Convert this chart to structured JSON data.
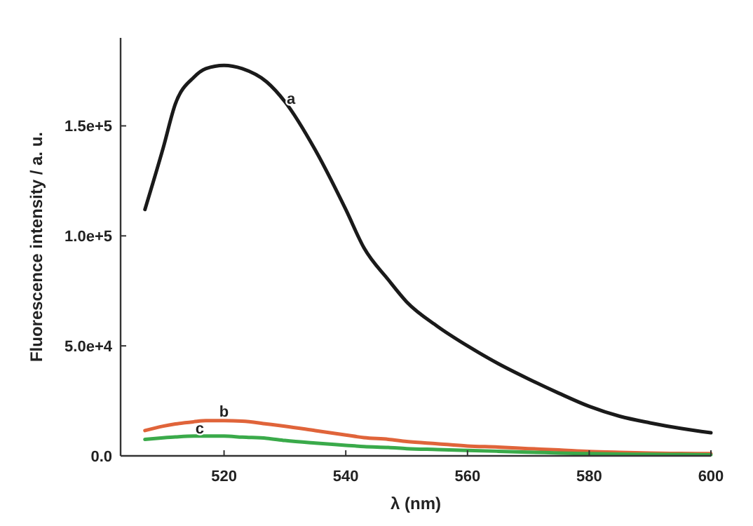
{
  "chart_data": {
    "type": "line",
    "xlabel": "λ (nm)",
    "ylabel": "Fluorescence intensity / a. u.",
    "xlim": [
      503,
      600
    ],
    "xticks": [
      520,
      540,
      560,
      580,
      600
    ],
    "ylim": [
      0,
      190000
    ],
    "yticks": [
      {
        "value": 0,
        "label": "0.0"
      },
      {
        "value": 50000,
        "label": "5.0e+4"
      },
      {
        "value": 100000,
        "label": "1.0e+5"
      },
      {
        "value": 150000,
        "label": "1.5e+5"
      }
    ],
    "grid": false,
    "marker": "none",
    "line_style": "solid",
    "x": [
      507,
      510,
      512,
      515,
      517,
      520,
      523,
      527,
      530,
      535,
      540,
      543,
      547,
      550,
      555,
      560,
      565,
      570,
      575,
      580,
      585,
      590,
      595,
      600
    ],
    "series": [
      {
        "color": "#1a1a1a",
        "values": [
          112000,
          140000,
          160000,
          172000,
          176000,
          177500,
          176000,
          170000,
          161000,
          139000,
          112000,
          94500,
          80000,
          70000,
          59000,
          50000,
          42000,
          35000,
          28500,
          22500,
          18000,
          15000,
          12500,
          10500
        ]
      },
      {
        "color": "#e0643a",
        "values": [
          11500,
          13500,
          14500,
          15500,
          16000,
          16000,
          15800,
          14500,
          13500,
          11500,
          9500,
          8300,
          7500,
          6500,
          5500,
          4500,
          4000,
          3300,
          2700,
          2000,
          1600,
          1300,
          1100,
          1000
        ]
      },
      {
        "color": "#3aaa4a",
        "values": [
          7500,
          8200,
          8600,
          9000,
          9000,
          9000,
          8500,
          8000,
          7000,
          5800,
          4800,
          4200,
          3800,
          3300,
          2900,
          2500,
          2100,
          1700,
          1300,
          1000,
          800,
          700,
          600,
          500
        ]
      }
    ],
    "annotations": [
      {
        "text": "a",
        "x": 531,
        "y": 160000
      },
      {
        "text": "b",
        "x": 520,
        "y": 18000
      },
      {
        "text": "c",
        "x": 516,
        "y": 10300
      }
    ]
  }
}
